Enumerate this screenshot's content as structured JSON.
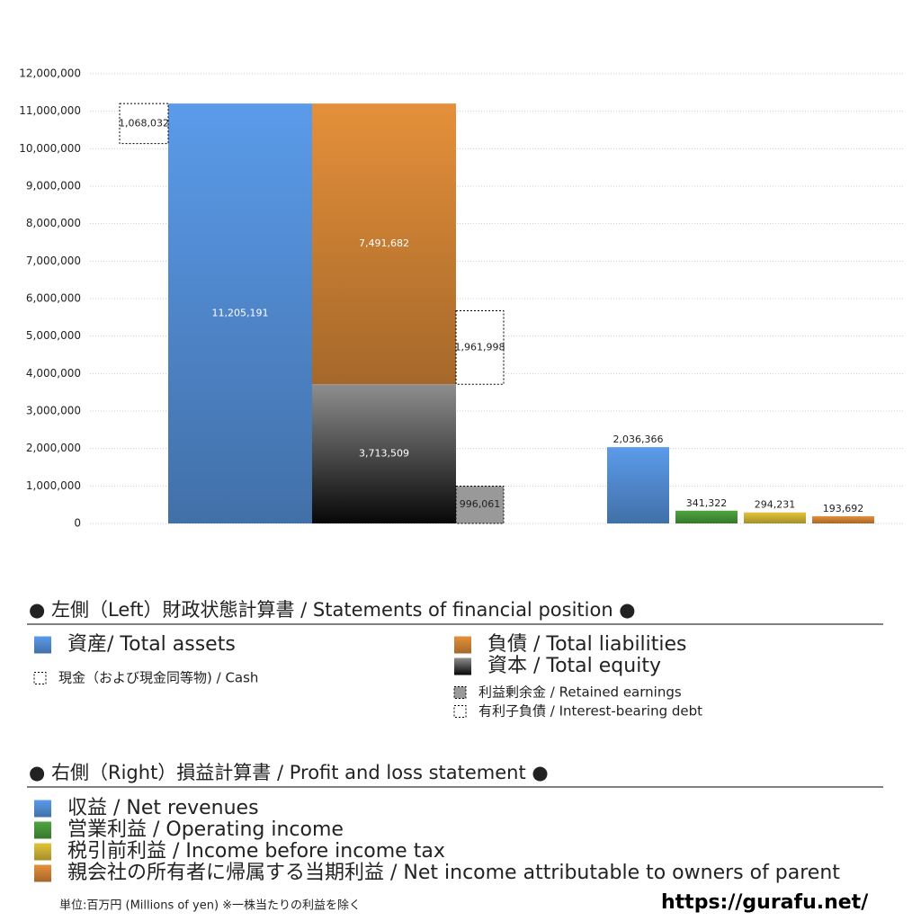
{
  "chart_data": {
    "type": "bar",
    "ylim": [
      0,
      12000000
    ],
    "yticks": [
      0,
      {
        "value": 1000000,
        "label": "1,000,000"
      },
      {
        "value": 2000000,
        "label": "2,000,000"
      },
      {
        "value": 3000000,
        "label": "3,000,000"
      },
      {
        "value": 4000000,
        "label": "4,000,000"
      },
      {
        "value": 5000000,
        "label": "5,000,000"
      },
      {
        "value": 6000000,
        "label": "6,000,000"
      },
      {
        "value": 7000000,
        "label": "7,000,000"
      },
      {
        "value": 8000000,
        "label": "8,000,000"
      },
      {
        "value": 9000000,
        "label": "9,000,000"
      },
      {
        "value": 10000000,
        "label": "10,000,000"
      },
      {
        "value": 11000000,
        "label": "11,000,000"
      },
      {
        "value": 12000000,
        "label": "12,000,000"
      }
    ],
    "grid": true,
    "groups": [
      {
        "title": "● 左側（Left）財政状態計算書 / Statements of financial position ●",
        "series": [
          {
            "name": "資産/ Total assets",
            "color": "#5b9bea",
            "values": [
              11205191
            ],
            "value_labels": [
              "11,205,191"
            ]
          },
          {
            "name": "負債 / Total liabilities",
            "color": "#e5903a",
            "values": [
              7491682
            ],
            "value_labels": [
              "7,491,682"
            ]
          },
          {
            "name": "資本 / Total equity",
            "color": "#8e8e8e",
            "values": [
              3713509
            ],
            "value_labels": [
              "3,713,509"
            ]
          },
          {
            "name": "現金（および現金同等物) / Cash",
            "color": "#ffffff",
            "border": "dashed",
            "values": [
              1068032
            ],
            "value_labels": [
              "1,068,032"
            ]
          },
          {
            "name": "利益剰余金 / Retained earnings",
            "color": "#999999",
            "border": "dashed",
            "values": [
              996061
            ],
            "value_labels": [
              "996,061"
            ]
          },
          {
            "name": "有利子負債 / Interest-bearing debt",
            "color": "#ffffff",
            "border": "dashed",
            "values": [
              1961998
            ],
            "value_labels": [
              "1,961,998"
            ]
          }
        ]
      },
      {
        "title": "● 右側（Right）損益計算書 / Profit and loss statement ●",
        "series": [
          {
            "name": "収益 / Net revenues",
            "color": "#5b9bea",
            "values": [
              2036366
            ],
            "value_labels": [
              "2,036,366"
            ]
          },
          {
            "name": "営業利益 / Operating income",
            "color": "#4ea53e",
            "values": [
              341322
            ],
            "value_labels": [
              "341,322"
            ]
          },
          {
            "name": "税引前利益 / Income before income tax",
            "color": "#e3c53a",
            "values": [
              294231
            ],
            "value_labels": [
              "294,231"
            ]
          },
          {
            "name": "親会社の所有者に帰属する当期利益 / Net income attributable to owners of parent",
            "color": "#e5903a",
            "values": [
              193692
            ],
            "value_labels": [
              "193,692"
            ]
          }
        ]
      }
    ],
    "note": "単位:百万円 (Millions of yen) ※一株当たりの利益を除く",
    "source": "https://gurafu.net/"
  }
}
